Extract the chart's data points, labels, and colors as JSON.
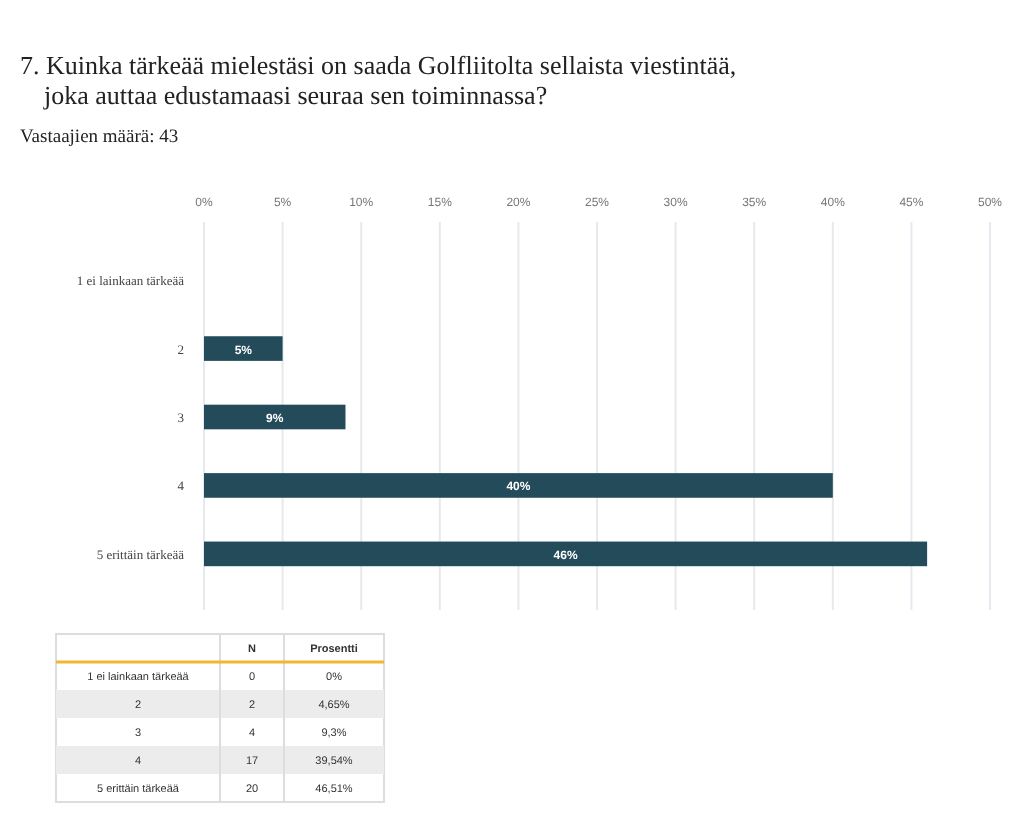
{
  "chart_data": {
    "type": "bar",
    "orientation": "horizontal",
    "title": "7. Kuinka tärkeää mielestäsi on saada Golfliitolta sellaista viestintää, joka auttaa edustamaasi seuraa sen toiminnassa?",
    "subtitle": "Vastaajien määrä: 43",
    "categories": [
      "1 ei lainkaan tärkeää",
      "2",
      "3",
      "4",
      "5 erittäin tärkeää"
    ],
    "values": [
      0,
      5,
      9,
      40,
      46
    ],
    "value_labels": [
      null,
      "5%",
      "9%",
      "40%",
      "46%"
    ],
    "color": "#234b5a",
    "xlim": [
      0,
      50
    ],
    "xticks": [
      {
        "value": 0,
        "label": "0%"
      },
      {
        "value": 5,
        "label": "5%"
      },
      {
        "value": 10,
        "label": "10%"
      },
      {
        "value": 15,
        "label": "15%"
      },
      {
        "value": 20,
        "label": "20%"
      },
      {
        "value": 25,
        "label": "25%"
      },
      {
        "value": 30,
        "label": "30%"
      },
      {
        "value": 35,
        "label": "35%"
      },
      {
        "value": 40,
        "label": "40%"
      },
      {
        "value": 45,
        "label": "45%"
      },
      {
        "value": 50,
        "label": "50%"
      }
    ],
    "grid": "x",
    "annotations": [
      "N",
      "Prosentti",
      "0",
      "0%",
      "2",
      "4,65%",
      "4",
      "9,3%",
      "17",
      "39,54%",
      "20",
      "46,51%"
    ]
  }
}
